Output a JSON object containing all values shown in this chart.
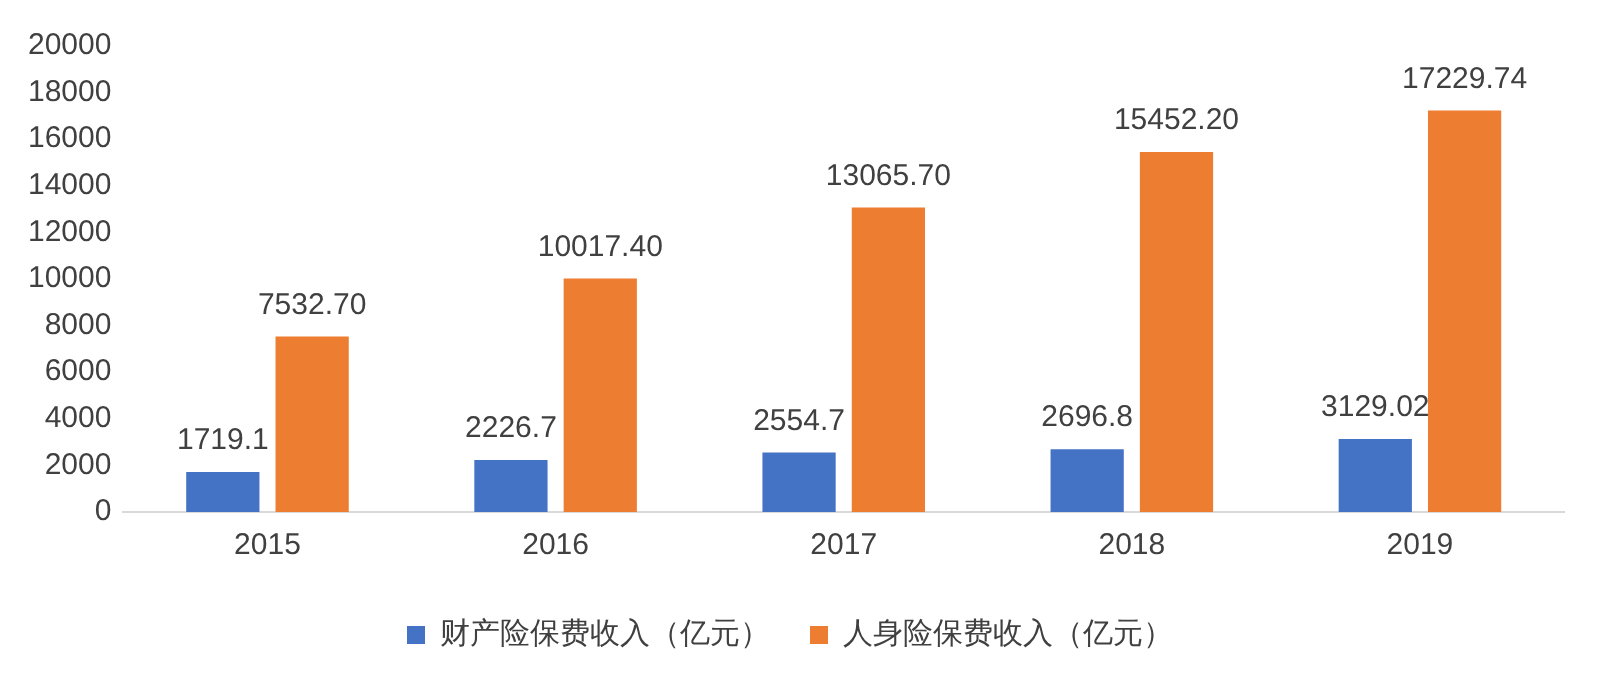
{
  "chart_data": {
    "type": "bar",
    "categories": [
      "2015",
      "2016",
      "2017",
      "2018",
      "2019"
    ],
    "series": [
      {
        "name": "财产险保费收入（亿元）",
        "color": "#4472c4",
        "values": [
          1719.1,
          2226.7,
          2554.7,
          2696.8,
          3129.02
        ],
        "value_labels": [
          "1719.1",
          "2226.7",
          "2554.7",
          "2696.8",
          "3129.02"
        ]
      },
      {
        "name": "人身险保费收入（亿元）",
        "color": "#ed7d31",
        "values": [
          7532.7,
          10017.4,
          13065.7,
          15452.2,
          17229.74
        ],
        "value_labels": [
          "7532.70",
          "10017.40",
          "13065.70",
          "15452.20",
          "17229.74"
        ]
      }
    ],
    "ylim": [
      0,
      20000
    ],
    "yticks": [
      0,
      2000,
      4000,
      6000,
      8000,
      10000,
      12000,
      14000,
      16000,
      18000,
      20000
    ],
    "grid": false,
    "legend": "bottom"
  }
}
